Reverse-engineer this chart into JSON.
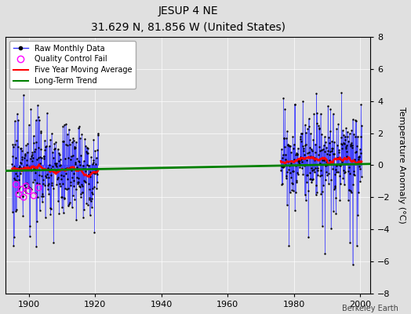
{
  "title": "JESUP 4 NE",
  "subtitle": "31.629 N, 81.856 W (United States)",
  "ylabel": "Temperature Anomaly (°C)",
  "credit": "Berkeley Earth",
  "xlim": [
    1893,
    2003
  ],
  "ylim": [
    -8,
    8
  ],
  "yticks": [
    -8,
    -6,
    -4,
    -2,
    0,
    2,
    4,
    6,
    8
  ],
  "xticks": [
    1900,
    1920,
    1940,
    1960,
    1980,
    2000
  ],
  "bg_color": "#e0e0e0",
  "plot_bg": "#e0e0e0",
  "raw_line_color": "#3333ff",
  "raw_marker_color": "black",
  "qc_color": "magenta",
  "moving_avg_color": "red",
  "trend_color": "green",
  "trend_x": [
    1893,
    2003
  ],
  "trend_y": [
    -0.35,
    0.08
  ],
  "early_start": 1895.0,
  "early_end": 1921.0,
  "gap1_start": 1914.0,
  "gap1_end": 1921.0,
  "late_start": 1976.0,
  "late_end": 2000.5,
  "seed": 17
}
